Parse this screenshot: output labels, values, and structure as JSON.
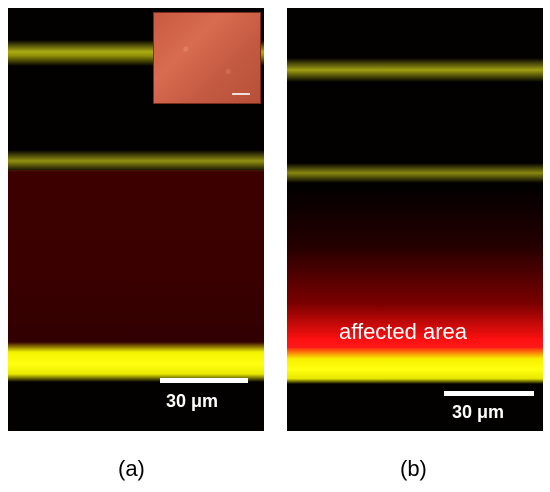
{
  "panels": [
    {
      "id": "a",
      "caption": "(a)",
      "scale_bar_label": "30 μm",
      "has_inset": true
    },
    {
      "id": "b",
      "caption": "(b)",
      "scale_bar_label": "30 μm",
      "annotation": "affected area"
    }
  ],
  "colors": {
    "yellow_band": "#ffff10",
    "red_region": "#3c0000",
    "affected_red": "#ff2020",
    "inset": "#c85a40"
  }
}
